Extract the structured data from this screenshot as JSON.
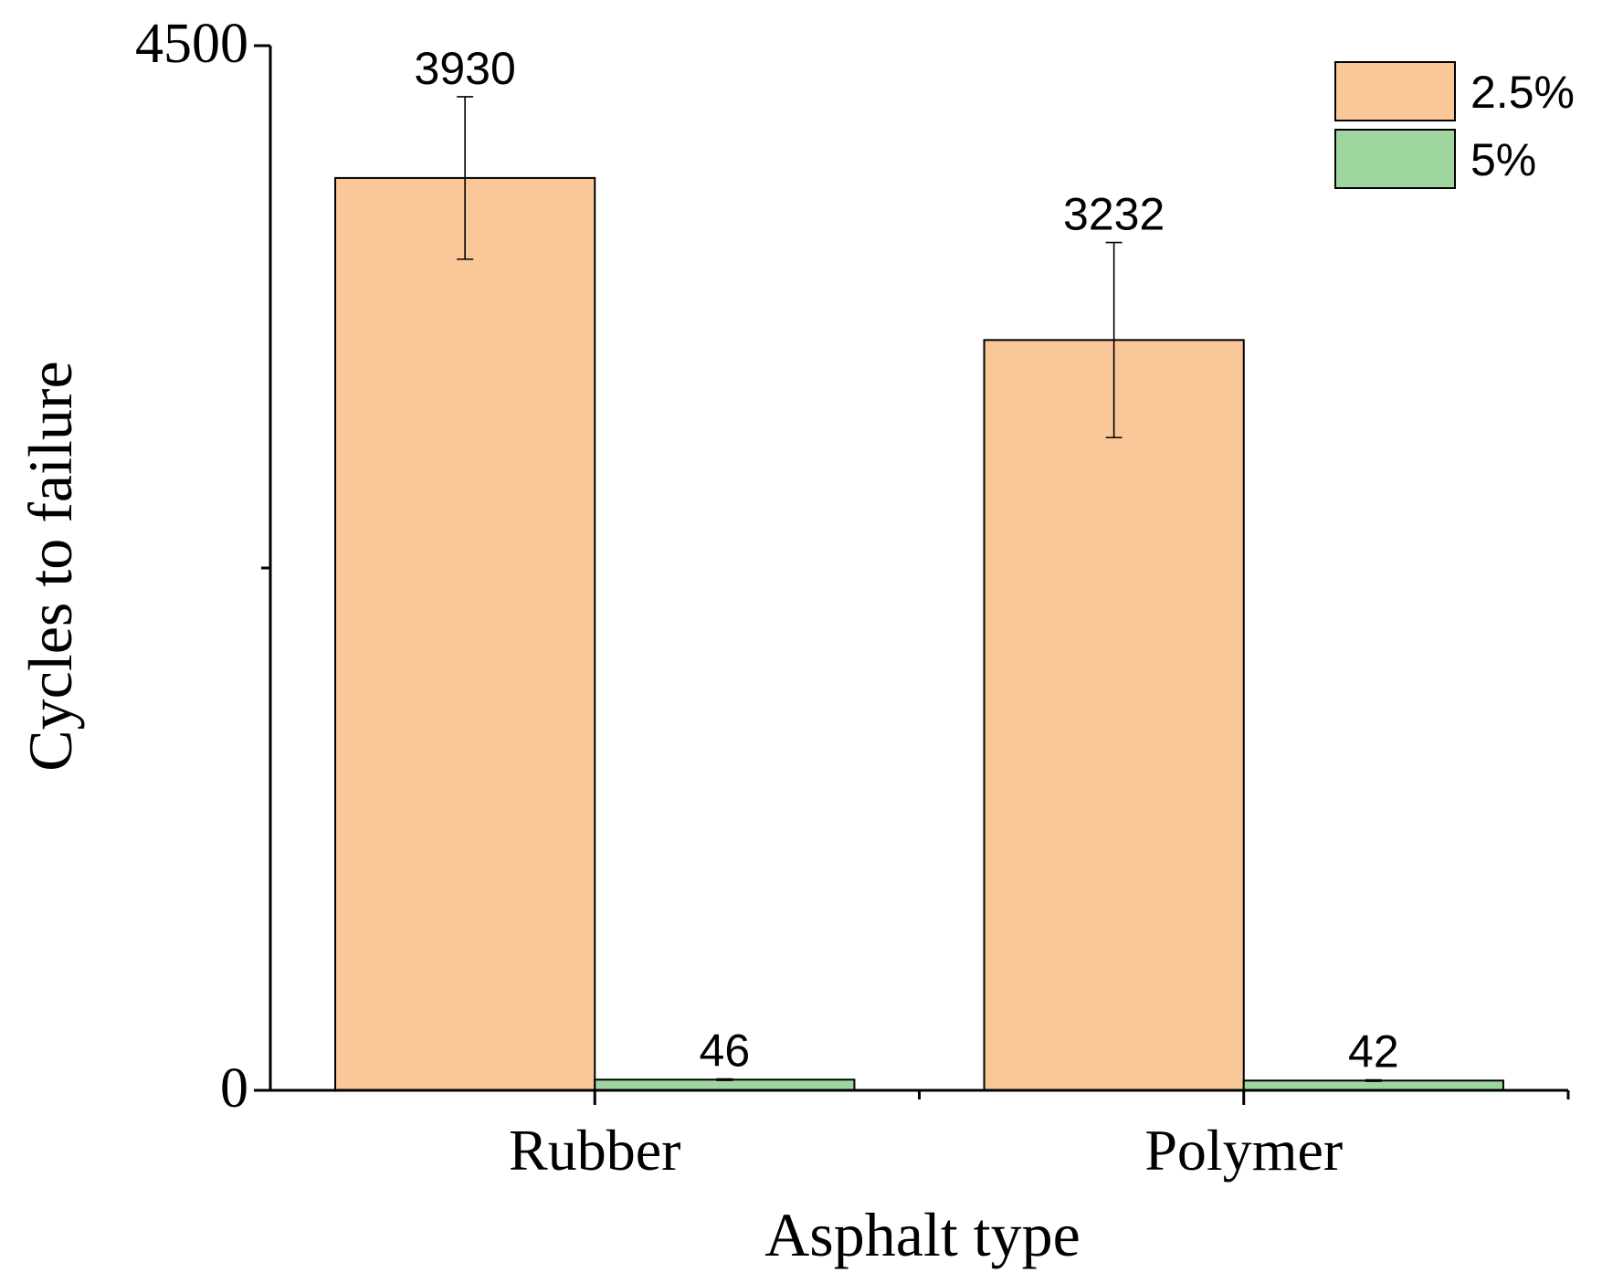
{
  "chart_data": {
    "type": "bar",
    "x_label": "Asphalt type",
    "y_label": "Cycles to failure",
    "categories": [
      "Rubber",
      "Polymer"
    ],
    "series": [
      {
        "name": "2.5%",
        "color": "#fac898",
        "values": [
          3930,
          3232
        ],
        "errors": [
          350,
          420
        ]
      },
      {
        "name": "5%",
        "color": "#9fd69f",
        "values": [
          46,
          42
        ],
        "errors": [
          3,
          3
        ]
      }
    ],
    "ylim": [
      0,
      4500
    ],
    "yticks": [
      0,
      4500
    ],
    "minor_yticks": [
      2250
    ],
    "legend": "upper right"
  }
}
